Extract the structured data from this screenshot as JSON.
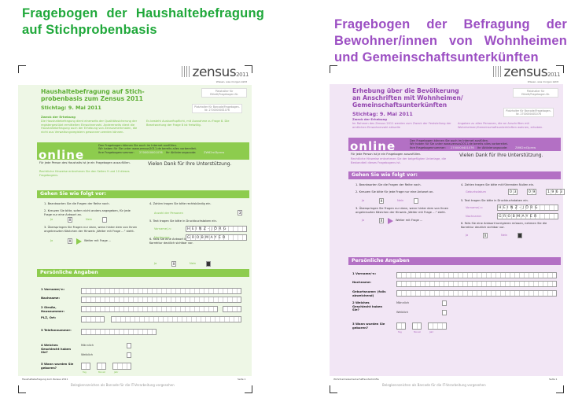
{
  "headings": {
    "left": "Fragebogen der Haushaltebefragung auf Stichprobenbasis",
    "right": "Fragebogen der Befragung der Bewohner/innen von Wohnheimen und Gemeinschaftsunterkünften"
  },
  "colors": {
    "green_heading": "#1fa83a",
    "purple_heading": "#9c4fc3",
    "green_panel": "#eef7e6",
    "green_banner": "#8dcc4e",
    "purple_panel": "#f2e6f5",
    "purple_banner": "#b370c4"
  },
  "pages": [
    {
      "theme": "green",
      "logo": "zensus",
      "logo_year": "2011",
      "tagline": "Wissen, was morgen zählt",
      "title": [
        "Haushaltebefragung auf Stich-",
        "probenbasis zum Zensus 2011"
      ],
      "stichtag": "Stichtag: 9. Mai 2011",
      "ph1": "Platzhalter für Etikett/Fragebogen-Nr.",
      "ph2": "Platzhalter für Barcode/Fragebogen-Nr. 2700000001076",
      "zweck_title": "Zweck der Erhebung",
      "zweck_left": "Die Haushaltebefragung dient einerseits der Qualitätssicherung der registergestützt ermittelten Einwohnerzahl. Andererseits dient die Haushaltebefragung auch der Erhebung von Zensusmerkmalen, die nicht aus Verwaltungsregistern gewonnen werden können.",
      "zweck_right": "Es besteht Auskunftspflicht, mit Ausnahme zu Frage 8. Die Beantwortung der Frage 8 ist freiwillig.",
      "online": {
        "word": "online",
        "line1": "Den Fragebogen können Sie auch im Internet ausfüllen.",
        "line2": "Wir haben für Sie unter www.zensus2011.de bereits alles vorbereitet.",
        "nr_label": "Ihre Fragebogennummer:",
        "nr": "2700000001076",
        "code_label": "Ihr Aktivierungscode:",
        "code": "ZW62rcI3prnw"
      },
      "intro": "Für jede Person des Haushalts ist je ein Fragebogen auszufüllen.",
      "legal": "Rechtliche Hinweise entnehmen Sie den Seiten 9 und 10 dieses Fragebogens.",
      "thanks": "Vielen Dank für Ihre Unterstützung.",
      "howto": "Gehen Sie wie folgt vor:",
      "steps": [
        "1. Beantworten Sie die Fragen der Reihe nach.",
        "2. Kreuzen Sie bitte, sofern nicht anders angegeben, für jede Frage nur eine Antwort an.",
        "3. Überspringen Sie Fragen nur dann, wenn hinter dem von Ihnen angekreuzten Kästchen der Hinweis „Weiter mit Frage ...“ steht.",
        "4. Zahlen tragen Sie bitte rechtsbündig ein.",
        "5. Text tragen Sie bitte in Druckbuchstaben ein.",
        "6. Falls Sie eine Antwort korrigieren müssen, nehmen Sie die Korrektur deutlich sichtbar vor."
      ],
      "ja": "Ja",
      "nein": "Nein",
      "x": "X",
      "weiter": "Weiter mit Frage ...",
      "anzahl": "Anzahl der Personen",
      "anzahl_val": "3",
      "vorname_lbl": "Vorname/-n:",
      "vorname_val": "HEINZ-JÖRG",
      "nachname_lbl": "Nachname:",
      "nachname_val": "GROBMAYER",
      "personal": "Persönliche Angaben",
      "fields": [
        "1 Vorname/-n:",
        "Nachname:",
        "2 Straße, Hausnummer:",
        "PLZ, Ort:",
        "3 Telefonnummer:",
        "4 Welches Geschlecht haben Sie?",
        "5 Wann wurden Sie geboren?"
      ],
      "maennlich": "Männlich",
      "weiblich": "Weiblich",
      "tag": "Tag",
      "monat": "Monat",
      "jahr": "Jahr",
      "footer_left": "Haushaltebefragung zum Zensus 2011",
      "footer_right": "Seite 1",
      "barcode_note": "Belegkennzeichen als Barcode für die IT-Verarbeitung vorgesehen"
    },
    {
      "theme": "purple",
      "logo": "zensus",
      "logo_year": "2011",
      "tagline": "Wissen, was morgen zählt",
      "title": [
        "Erhebung über die Bevölkerung",
        "an Anschriften mit Wohnheimen/",
        "Gemeinschaftsunterkünften"
      ],
      "stichtag": "Stichtag: 9. Mai 2011",
      "ph1": "Platzhalter für Etikett/Fragebogen-Nr.",
      "ph2": "Platzhalter für Barcode/Fragebogen-Nr. 2700000401076",
      "zweck_title": "Zweck der Erhebung",
      "zweck_left": "Im Rahmen des Zensus 2011 werden zum Zweck der Feststellung der amtlichen Einwohnerzahl aktuelle",
      "zweck_right": "Angaben zu allen Personen, die an Anschriften mit Wohnheimen/Gemeinschaftsunterkünften wohnen, erhoben.",
      "online": {
        "word": "online",
        "line1": "Den Fragebogen können Sie auch im Internet ausfüllen.",
        "line2": "Wir haben für Sie unter www.zensus2011.de bereits alles vorbereitet.",
        "nr_label": "Ihre Fragebogennummer:",
        "nr": "2700000401076",
        "code_label": "Ihr Aktivierungscode:",
        "code": "ZW62rcI3prnw"
      },
      "intro": "Für jede Person ist je ein Fragebogen auszufüllen.",
      "legal": "Rechtliche Hinweise entnehmen Sie der beigefügten Unterlage, die Bestandteil dieses Fragebogens ist.",
      "thanks": "Vielen Dank für Ihre Unterstützung.",
      "howto": "Gehen Sie wie folgt vor:",
      "steps": [
        "1. Beantworten Sie die Fragen der Reihe nach.",
        "2. Kreuzen Sie bitte für jede Frage nur eine Antwort an.",
        "3. Überspringen Sie Fragen nur dann, wenn hinter dem von Ihnen angekreuzten Kästchen der Hinweis „Weiter mit Frage ...“ steht.",
        "4. Zahlen tragen Sie bitte mit führenden Nullen ein.",
        "5. Text tragen Sie bitte in Druckbuchstaben ein.",
        "6. Falls Sie eine Antwort korrigieren müssen, nehmen Sie die Korrektur deutlich sichtbar vor."
      ],
      "ja": "Ja",
      "nein": "Nein",
      "x": "X",
      "weiter": "Weiter mit Frage ...",
      "geburt": "Geburtsdatum",
      "geburt_val": [
        "03",
        "09",
        "1963"
      ],
      "vorname_lbl": "Vorname/-n:",
      "vorname_val": "HEINZ-JÖRG",
      "nachname_lbl": "Nachname:",
      "nachname_val": "GROBMAYER",
      "personal": "Persönliche Angaben",
      "fields": [
        "1 Vorname/-n:",
        "Nachname:",
        "Geburtsname: (falls abweichend)",
        "2 Welches Geschlecht haben Sie?",
        "3 Wann wurden Sie geboren?"
      ],
      "maennlich": "Männlich",
      "weiblich": "Weiblich",
      "tag": "Tag",
      "monat": "Monat",
      "jahr": "Jahr",
      "footer_left": "WohnheimeGemeinschaftsunterkünfte",
      "footer_right": "Seite 1",
      "barcode_note": "Belegkennzeichen als Barcode für die IT-Verarbeitung vorgesehen"
    }
  ]
}
